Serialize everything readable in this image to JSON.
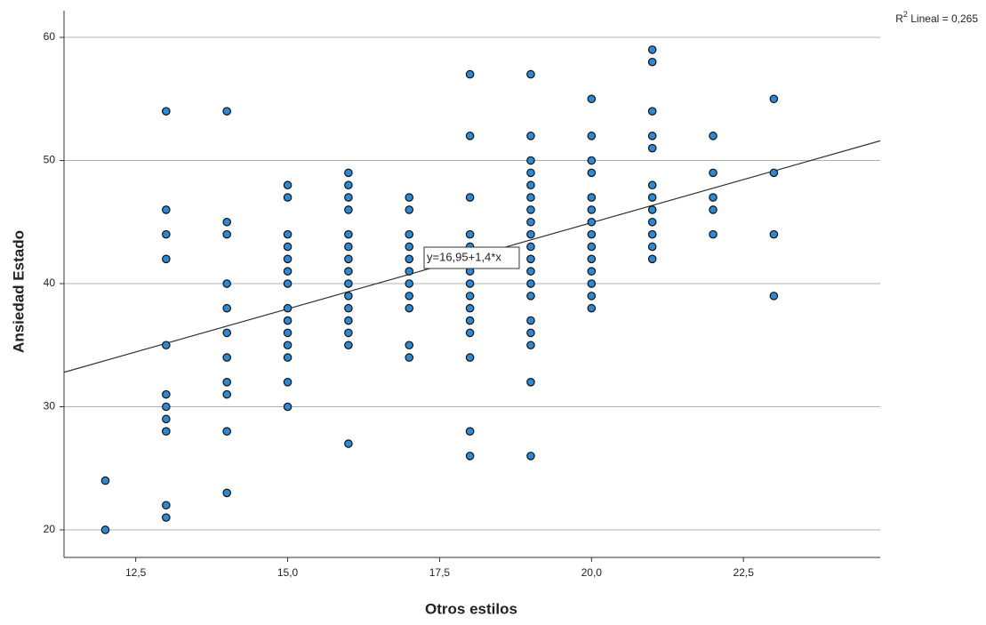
{
  "chart_data": {
    "type": "scatter",
    "x_label": "Otros estilos",
    "y_label": "Ansiedad Estado",
    "xlim": [
      11.32,
      24.75
    ],
    "ylim": [
      17.76,
      62.17
    ],
    "xticks": [
      {
        "value": 12.5,
        "label": "12,5"
      },
      {
        "value": 15,
        "label": "15,0"
      },
      {
        "value": 17.5,
        "label": "17,5"
      },
      {
        "value": 20,
        "label": "20,0"
      },
      {
        "value": 22.5,
        "label": "22,5"
      }
    ],
    "yticks": [
      20,
      30,
      40,
      50,
      60
    ],
    "grid": true,
    "color": "#2a8ad6",
    "fit_line": {
      "intercept": 16.95,
      "slope": 1.4,
      "label": "y=16,95+1,4*x"
    },
    "r2_label": [
      "R",
      "2",
      " Lineal = 0,265"
    ],
    "x": [
      12,
      12,
      13,
      13,
      13,
      13,
      13,
      13,
      13,
      13,
      13,
      13,
      13,
      14,
      14,
      14,
      14,
      14,
      14,
      14,
      14,
      14,
      14,
      14,
      15,
      15,
      15,
      15,
      15,
      15,
      15,
      15,
      15,
      15,
      15,
      15,
      15,
      15,
      16,
      16,
      16,
      16,
      16,
      16,
      16,
      16,
      16,
      16,
      16,
      16,
      16,
      16,
      16,
      17,
      17,
      17,
      17,
      17,
      17,
      17,
      17,
      17,
      17,
      17,
      18,
      18,
      18,
      18,
      18,
      18,
      18,
      18,
      18,
      18,
      18,
      18,
      18,
      18,
      18,
      19,
      19,
      19,
      19,
      19,
      19,
      19,
      19,
      19,
      19,
      19,
      19,
      19,
      19,
      19,
      19,
      19,
      19,
      19,
      20,
      20,
      20,
      20,
      20,
      20,
      20,
      20,
      20,
      20,
      20,
      20,
      20,
      20,
      21,
      21,
      21,
      21,
      21,
      21,
      21,
      21,
      21,
      21,
      21,
      21,
      22,
      22,
      22,
      22,
      22,
      23,
      23,
      23,
      23
    ],
    "y": [
      24,
      20,
      54,
      46,
      44,
      42,
      35,
      31,
      30,
      29,
      28,
      22,
      21,
      54,
      45,
      44,
      40,
      38,
      36,
      34,
      32,
      31,
      28,
      23,
      48,
      47,
      44,
      43,
      42,
      41,
      40,
      38,
      37,
      36,
      35,
      34,
      32,
      30,
      49,
      48,
      47,
      46,
      44,
      43,
      42,
      41,
      40,
      39,
      38,
      37,
      36,
      35,
      27,
      47,
      46,
      44,
      43,
      42,
      41,
      40,
      39,
      38,
      35,
      34,
      57,
      52,
      47,
      44,
      43,
      42,
      41,
      40,
      39,
      38,
      37,
      36,
      34,
      28,
      26,
      57,
      52,
      50,
      49,
      48,
      47,
      46,
      45,
      44,
      43,
      42,
      41,
      40,
      39,
      37,
      36,
      35,
      32,
      26,
      55,
      52,
      50,
      49,
      47,
      46,
      45,
      44,
      43,
      42,
      41,
      40,
      39,
      38,
      59,
      58,
      54,
      52,
      51,
      48,
      47,
      46,
      45,
      44,
      43,
      42,
      52,
      49,
      47,
      46,
      44,
      55,
      49,
      44,
      39
    ]
  }
}
